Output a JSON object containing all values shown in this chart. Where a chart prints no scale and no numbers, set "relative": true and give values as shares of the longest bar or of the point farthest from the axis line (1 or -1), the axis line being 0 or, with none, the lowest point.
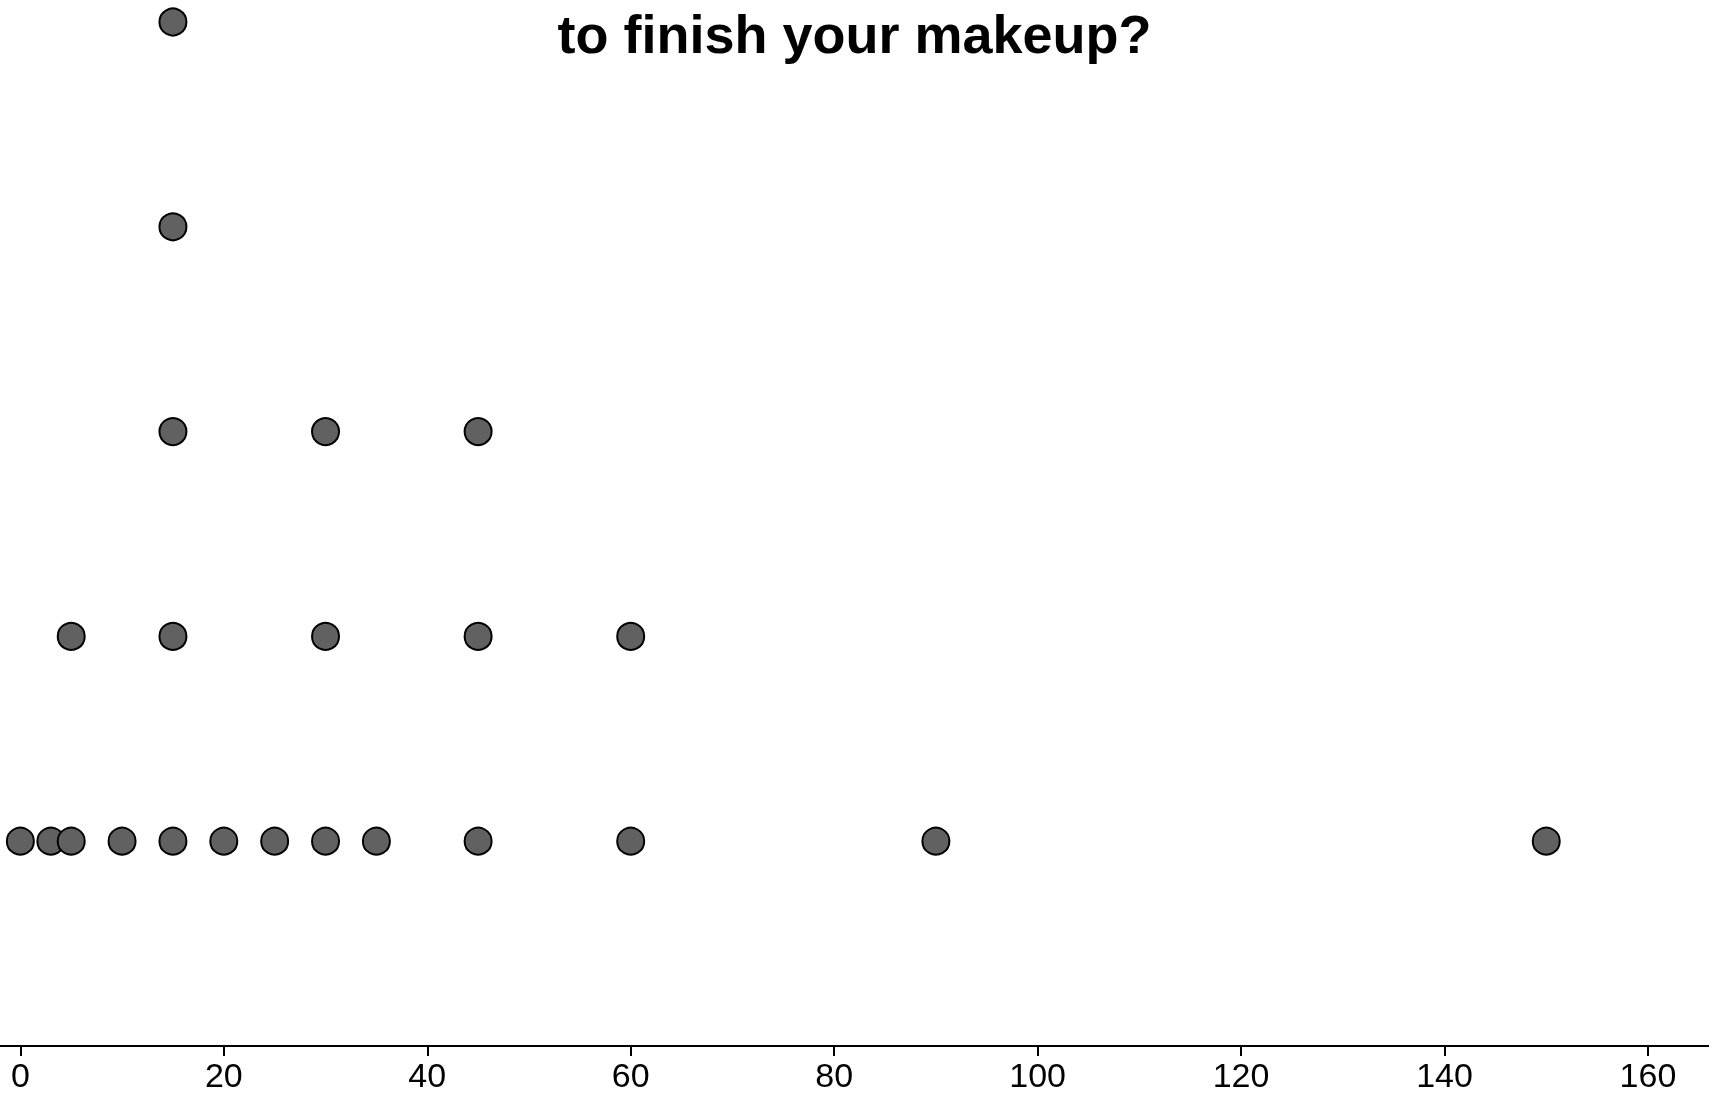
{
  "chart_data": {
    "type": "scatter",
    "title": "to finish your makeup?",
    "relative": true,
    "marker": "circle",
    "grid": false,
    "xlim": [
      -2,
      166
    ],
    "xticks": [
      0,
      20,
      40,
      60,
      80,
      100,
      120,
      140,
      160
    ],
    "series": [
      {
        "color": "#616161",
        "x": [
          0,
          3,
          5,
          10,
          15,
          20,
          25,
          30,
          35,
          45,
          60,
          90,
          150,
          5,
          15,
          30,
          45,
          60,
          15,
          30,
          45,
          15,
          15
        ],
        "values": [
          0.2,
          0.2,
          0.2,
          0.2,
          0.2,
          0.2,
          0.2,
          0.2,
          0.2,
          0.2,
          0.2,
          0.2,
          0.2,
          0.4,
          0.4,
          0.4,
          0.4,
          0.4,
          0.6,
          0.6,
          0.6,
          0.8,
          1.0
        ]
      }
    ]
  }
}
